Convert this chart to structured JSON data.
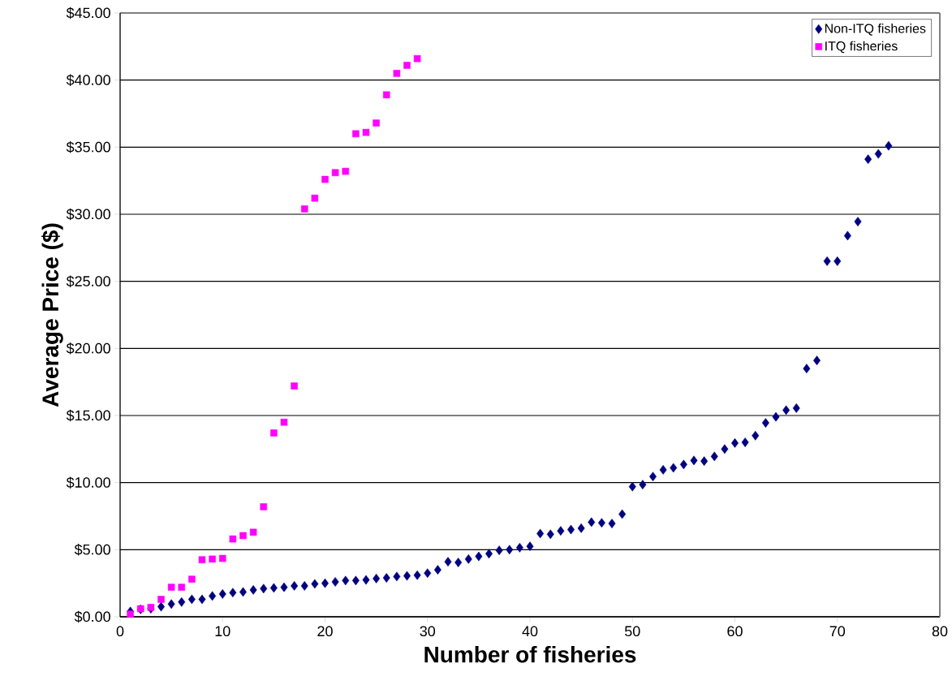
{
  "chart_data": {
    "type": "scatter",
    "xlabel": "Number of fisheries",
    "ylabel": "Average Price ($)",
    "xlim": [
      0,
      80
    ],
    "xticks": [
      0,
      10,
      20,
      30,
      40,
      50,
      60,
      70,
      80
    ],
    "ylim": [
      0,
      45
    ],
    "yticks": [
      {
        "value": 0,
        "label": "$0.00"
      },
      {
        "value": 5,
        "label": "$5.00"
      },
      {
        "value": 10,
        "label": "$10.00"
      },
      {
        "value": 15,
        "label": "$15.00"
      },
      {
        "value": 20,
        "label": "$20.00"
      },
      {
        "value": 25,
        "label": "$25.00"
      },
      {
        "value": 30,
        "label": "$30.00"
      },
      {
        "value": 35,
        "label": "$35.00"
      },
      {
        "value": 40,
        "label": "$40.00"
      },
      {
        "value": 45,
        "label": "$45.00"
      }
    ],
    "grid": "y",
    "legend": "top right",
    "series": [
      {
        "name": "Non-ITQ fisheries",
        "color": "#000080",
        "marker": "diamond",
        "x": [
          1,
          2,
          3,
          4,
          5,
          6,
          7,
          8,
          9,
          10,
          11,
          12,
          13,
          14,
          15,
          16,
          17,
          18,
          19,
          20,
          21,
          22,
          23,
          24,
          25,
          26,
          27,
          28,
          29,
          30,
          31,
          32,
          33,
          34,
          35,
          36,
          37,
          38,
          39,
          40,
          41,
          42,
          43,
          44,
          45,
          46,
          47,
          48,
          49,
          50,
          51,
          52,
          53,
          54,
          55,
          56,
          57,
          58,
          59,
          60,
          61,
          62,
          63,
          64,
          65,
          66,
          67,
          68,
          69,
          70,
          71,
          72,
          73,
          74,
          75
        ],
        "values": [
          0.4,
          0.55,
          0.6,
          0.75,
          0.95,
          1.1,
          1.3,
          1.3,
          1.55,
          1.7,
          1.8,
          1.85,
          2.0,
          2.1,
          2.15,
          2.2,
          2.3,
          2.3,
          2.45,
          2.5,
          2.6,
          2.7,
          2.7,
          2.75,
          2.85,
          2.9,
          3.0,
          3.05,
          3.1,
          3.25,
          3.5,
          4.1,
          4.05,
          4.3,
          4.5,
          4.7,
          4.95,
          5.0,
          5.15,
          5.25,
          6.2,
          6.15,
          6.4,
          6.5,
          6.6,
          7.05,
          7.0,
          6.95,
          7.65,
          9.7,
          9.85,
          10.45,
          10.95,
          11.1,
          11.35,
          11.65,
          11.6,
          11.95,
          12.5,
          12.95,
          13.0,
          13.5,
          14.45,
          14.9,
          15.4,
          15.55,
          18.5,
          19.1,
          26.5,
          26.5,
          28.4,
          29.45,
          34.1,
          34.5,
          35.1
        ]
      },
      {
        "name": "ITQ fisheries",
        "color": "#ff00ff",
        "marker": "square",
        "x": [
          1,
          2,
          3,
          4,
          5,
          6,
          7,
          8,
          9,
          10,
          11,
          12,
          13,
          14,
          15,
          16,
          17,
          18,
          19,
          20,
          21,
          22,
          23,
          24,
          25,
          26,
          27,
          28,
          29
        ],
        "values": [
          0.2,
          0.6,
          0.7,
          1.3,
          2.2,
          2.2,
          2.8,
          4.25,
          4.3,
          4.35,
          5.8,
          6.05,
          6.3,
          8.2,
          13.7,
          14.5,
          17.2,
          30.4,
          31.2,
          32.6,
          33.1,
          33.2,
          36.0,
          36.1,
          36.8,
          38.9,
          40.5,
          41.1,
          41.6
        ]
      }
    ]
  }
}
